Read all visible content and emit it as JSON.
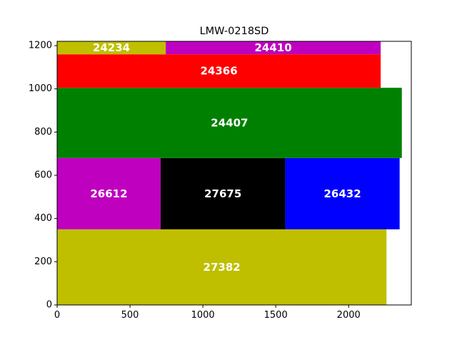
{
  "chart_data": {
    "type": "rectangle-packing",
    "title": "LMW-0218SD",
    "xlabel": "",
    "ylabel": "",
    "xlim": [
      0,
      2430
    ],
    "ylim": [
      0,
      1220
    ],
    "x_ticks": [
      0,
      500,
      1000,
      1500,
      2000
    ],
    "y_ticks": [
      0,
      200,
      400,
      600,
      800,
      1000,
      1200
    ],
    "grid": false,
    "rectangles": [
      {
        "label": "27382",
        "x": 0,
        "y": 0,
        "width": 2260,
        "height": 350,
        "color": "#bfbf00"
      },
      {
        "label": "26612",
        "x": 0,
        "y": 350,
        "width": 710,
        "height": 330,
        "color": "#bf00bf"
      },
      {
        "label": "27675",
        "x": 710,
        "y": 350,
        "width": 855,
        "height": 330,
        "color": "#000000"
      },
      {
        "label": "26432",
        "x": 1565,
        "y": 350,
        "width": 785,
        "height": 330,
        "color": "#0000ff"
      },
      {
        "label": "24407",
        "x": 0,
        "y": 680,
        "width": 2365,
        "height": 325,
        "color": "#008000"
      },
      {
        "label": "24366",
        "x": 0,
        "y": 1005,
        "width": 2220,
        "height": 155,
        "color": "#ff0000"
      },
      {
        "label": "24234",
        "x": 0,
        "y": 1160,
        "width": 745,
        "height": 60,
        "color": "#bfbf00"
      },
      {
        "label": "24410",
        "x": 745,
        "y": 1160,
        "width": 1475,
        "height": 60,
        "color": "#bf00bf"
      }
    ]
  }
}
